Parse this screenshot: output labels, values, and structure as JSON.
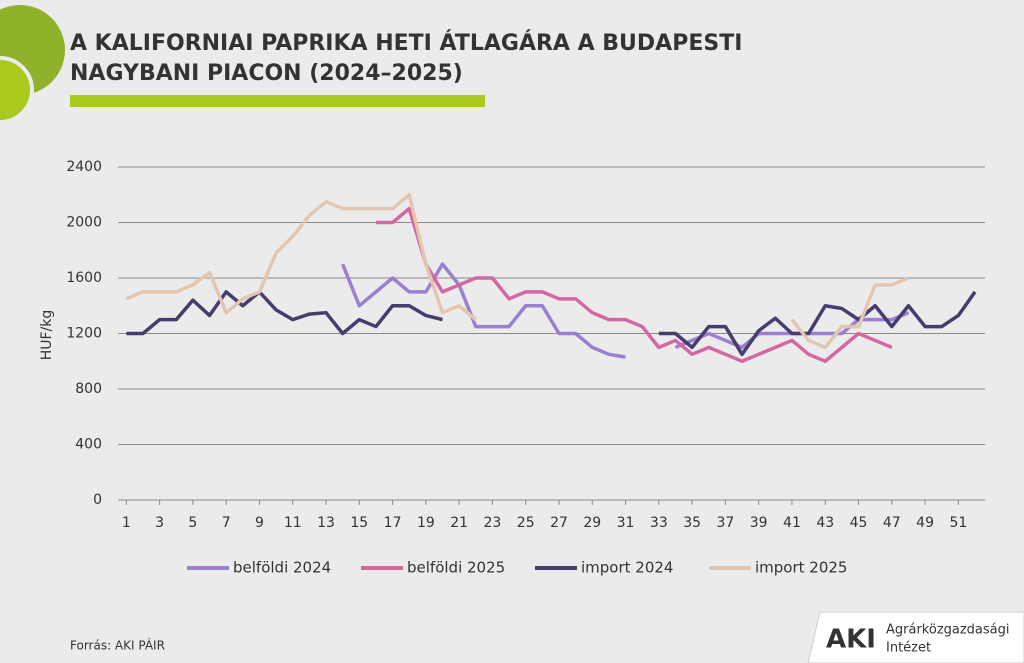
{
  "chart_data": {
    "type": "line",
    "title": [
      "A KALIFORNIAI PAPRIKA HETI ÁTLAGÁRA A BUDAPESTI",
      "NAGYBANI PIACON (2024–2025)"
    ],
    "ylabel": "HUF/kg",
    "x": [
      1,
      2,
      3,
      4,
      5,
      6,
      7,
      8,
      9,
      10,
      11,
      12,
      13,
      14,
      15,
      16,
      17,
      18,
      19,
      20,
      21,
      22,
      23,
      24,
      25,
      26,
      27,
      28,
      29,
      30,
      31,
      32,
      33,
      34,
      35,
      36,
      37,
      38,
      39,
      40,
      41,
      42,
      43,
      44,
      45,
      46,
      47,
      48,
      49,
      50,
      51,
      52
    ],
    "xlim": [
      0.5,
      52.6
    ],
    "xticks": [
      1,
      3,
      5,
      7,
      9,
      11,
      13,
      15,
      17,
      19,
      21,
      23,
      25,
      27,
      29,
      31,
      33,
      35,
      37,
      39,
      41,
      43,
      45,
      47,
      49,
      51
    ],
    "ylim": [
      0,
      2400
    ],
    "yticks": [
      0,
      400,
      800,
      1200,
      1600,
      2000,
      2400
    ],
    "grid": true,
    "series": [
      {
        "name": "belföldi 2024",
        "color": "#9b7fd0",
        "values": [
          null,
          null,
          null,
          null,
          null,
          null,
          null,
          null,
          null,
          null,
          null,
          null,
          null,
          1700,
          1400,
          1500,
          1600,
          1500,
          1500,
          1700,
          1550,
          1250,
          1250,
          1250,
          1400,
          1400,
          1200,
          1200,
          1100,
          1050,
          1030,
          null,
          null,
          1100,
          1150,
          1200,
          1150,
          1100,
          1200,
          1200,
          1200,
          1200,
          1200,
          1200,
          1300,
          1300,
          1300,
          1350,
          null,
          null,
          null,
          null
        ]
      },
      {
        "name": "belföldi 2025",
        "color": "#d467a0",
        "values": [
          null,
          null,
          null,
          null,
          null,
          null,
          null,
          null,
          null,
          null,
          null,
          null,
          null,
          null,
          null,
          2000,
          2000,
          2100,
          1700,
          1500,
          1550,
          1600,
          1600,
          1450,
          1500,
          1500,
          1450,
          1450,
          1350,
          1300,
          1300,
          1250,
          1100,
          1150,
          1050,
          1100,
          1050,
          1000,
          1050,
          1100,
          1150,
          1050,
          1000,
          1100,
          1200,
          1150,
          1100,
          null,
          null,
          null,
          null,
          null
        ]
      },
      {
        "name": "import 2024",
        "color": "#453d6e",
        "values": [
          1200,
          1200,
          1300,
          1300,
          1440,
          1330,
          1500,
          1400,
          1500,
          1370,
          1300,
          1340,
          1350,
          1200,
          1300,
          1250,
          1400,
          1400,
          1330,
          1300,
          null,
          null,
          null,
          null,
          null,
          null,
          null,
          null,
          null,
          null,
          null,
          null,
          1200,
          1200,
          1100,
          1250,
          1250,
          1050,
          1220,
          1310,
          1200,
          1200,
          1400,
          1380,
          1300,
          1400,
          1250,
          1400,
          1250,
          1250,
          1330,
          1500
        ]
      },
      {
        "name": "import 2025",
        "color": "#e3c6b0",
        "values": [
          1450,
          1500,
          1500,
          1500,
          1550,
          1640,
          1350,
          1450,
          1500,
          1780,
          1900,
          2050,
          2150,
          2100,
          2100,
          2100,
          2100,
          2200,
          1700,
          1350,
          1400,
          1300,
          null,
          null,
          null,
          null,
          null,
          null,
          null,
          null,
          null,
          null,
          null,
          null,
          null,
          null,
          null,
          null,
          null,
          null,
          1300,
          1150,
          1100,
          1250,
          1250,
          1550,
          1550,
          1600,
          null,
          null,
          null,
          null
        ]
      }
    ],
    "source": "Forrás: AKI PÁIR",
    "logo": {
      "mark": "AKI",
      "name": [
        "Agrárközgazdasági",
        "Intézet"
      ]
    }
  }
}
